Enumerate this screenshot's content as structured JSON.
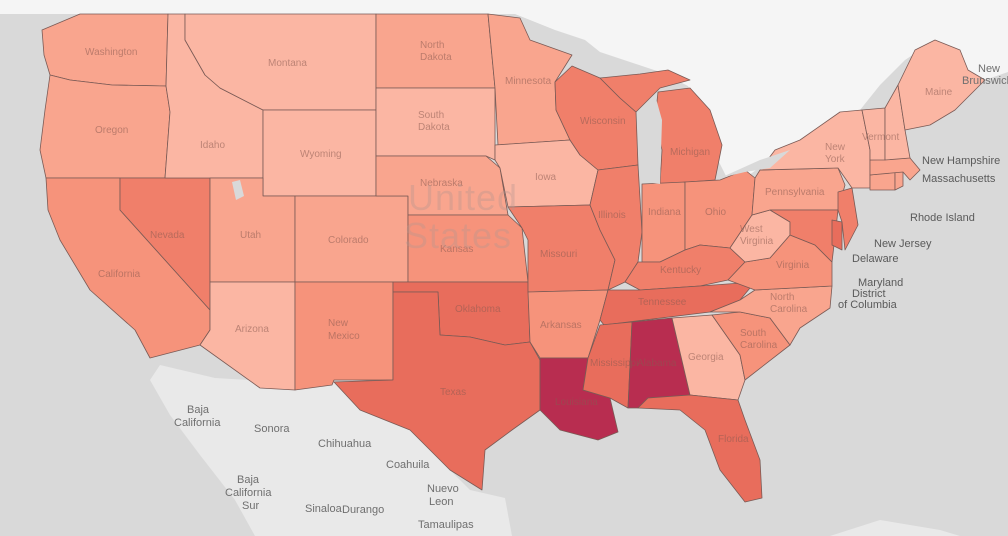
{
  "colors": {
    "land_light": "#f7f7f7",
    "land_gray": "#e8e8e8",
    "water": "#d9d9d9",
    "border": "#7a5a55",
    "scale": [
      "#fcc6b6",
      "#fbb6a3",
      "#f9a58e",
      "#f6937b",
      "#f07f6a",
      "#e86d5c",
      "#c63a57",
      "#b82d50"
    ]
  },
  "country_label": {
    "line1": "United",
    "line2": "States"
  },
  "outside_labels": {
    "baja_california": [
      "Baja",
      "California"
    ],
    "sonora": "Sonora",
    "chihuahua": "Chihuahua",
    "baja_california_sur": [
      "Baja",
      "California",
      "Sur"
    ],
    "coahuila": "Coahuila",
    "nuevo_leon": [
      "Nuevo",
      "Leon"
    ],
    "sinaloa": "Sinaloa",
    "durango": "Durango",
    "tamaulipas": "Tamaulipas",
    "new_brunswick": [
      "New",
      "Brunswick"
    ]
  },
  "callout_labels": {
    "new_hampshire": "New Hampshire",
    "massachusetts": "Massachusetts",
    "rhode_island": "Rhode Island",
    "new_jersey": "New Jersey",
    "delaware": "Delaware",
    "maryland": "Maryland",
    "dc": [
      "District",
      "of Columbia"
    ]
  },
  "state_labels": {
    "washington": "Washington",
    "oregon": "Oregon",
    "california": "California",
    "idaho": "Idaho",
    "nevada": "Nevada",
    "montana": "Montana",
    "wyoming": "Wyoming",
    "utah": "Utah",
    "arizona": "Arizona",
    "colorado": "Colorado",
    "new_mexico": [
      "New",
      "Mexico"
    ],
    "north_dakota": [
      "North",
      "Dakota"
    ],
    "south_dakota": [
      "South",
      "Dakota"
    ],
    "nebraska": "Nebraska",
    "kansas": "Kansas",
    "oklahoma": "Oklahoma",
    "texas": "Texas",
    "minnesota": "Minnesota",
    "iowa": "Iowa",
    "missouri": "Missouri",
    "arkansas": "Arkansas",
    "louisiana": "Louisiana",
    "wisconsin": "Wisconsin",
    "illinois": "Illinois",
    "michigan": "Michigan",
    "indiana": "Indiana",
    "ohio": "Ohio",
    "kentucky": "Kentucky",
    "tennessee": "Tennessee",
    "mississippi": "Mississippi",
    "alabama": "Alabama",
    "georgia": "Georgia",
    "florida": "Florida",
    "south_carolina": [
      "South",
      "Carolina"
    ],
    "north_carolina": [
      "North",
      "Carolina"
    ],
    "virginia": "Virginia",
    "west_virginia": [
      "West",
      "Virginia"
    ],
    "pennsylvania": "Pennsylvania",
    "new_york": [
      "New",
      "York"
    ],
    "maine": "Maine",
    "vermont": "Vermont"
  },
  "state_levels": {
    "washington": 2,
    "oregon": 2,
    "california": 3,
    "idaho": 1,
    "nevada": 4,
    "montana": 1,
    "wyoming": 1,
    "utah": 2,
    "arizona": 1,
    "colorado": 2,
    "new_mexico": 3,
    "north_dakota": 2,
    "south_dakota": 1,
    "nebraska": 2,
    "kansas": 3,
    "oklahoma": 5,
    "texas": 5,
    "minnesota": 2,
    "iowa": 1,
    "missouri": 4,
    "arkansas": 3,
    "louisiana": 7,
    "wisconsin": 4,
    "illinois": 4,
    "michigan": 4,
    "indiana": 3,
    "ohio": 3,
    "kentucky": 4,
    "tennessee": 5,
    "mississippi": 5,
    "alabama": 7,
    "georgia": 1,
    "florida": 5,
    "south_carolina": 3,
    "north_carolina": 2,
    "virginia": 3,
    "west_virginia": 1,
    "pennsylvania": 2,
    "new_york": 1,
    "maine": 1,
    "vermont": 1,
    "new_hampshire": 1,
    "massachusetts": 2,
    "rhode_island": 2,
    "connecticut": 2,
    "new_jersey": 4,
    "delaware": 5,
    "maryland": 4
  }
}
